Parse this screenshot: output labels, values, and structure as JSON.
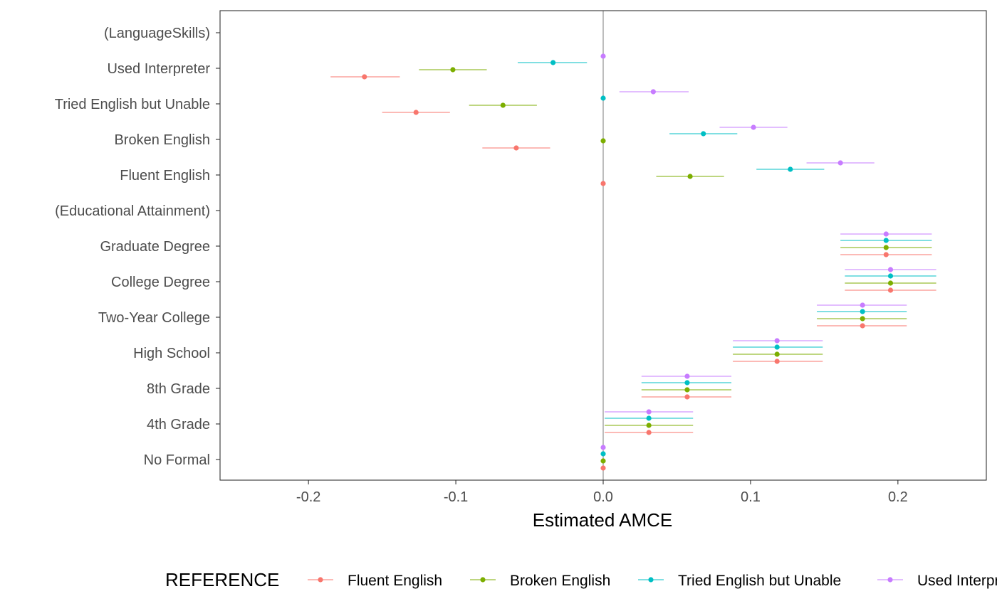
{
  "chart_data": {
    "type": "scatter",
    "xlabel": "Estimated AMCE",
    "xlim": [
      -0.26,
      0.26
    ],
    "xticks": [
      -0.2,
      -0.1,
      0.0,
      0.1,
      0.2
    ],
    "xtick_labels": [
      "-0.2",
      "-0.1",
      "0.0",
      "0.1",
      "0.2"
    ],
    "grid": false,
    "reference_line": 0.0,
    "legend_position": "bottom",
    "legend_title": "REFERENCE",
    "categories": [
      "(LanguageSkills)",
      "Used Interpreter",
      "Tried English but Unable",
      "Broken English",
      "Fluent English",
      "(Educational Attainment)",
      "Graduate Degree",
      "College Degree",
      "Two-Year College",
      "High School",
      "8th Grade",
      "4th Grade",
      "No Formal"
    ],
    "series": [
      {
        "name": "Fluent English",
        "color": "#F8766D",
        "points": [
          {
            "category": "Used Interpreter",
            "est": -0.162,
            "lo": -0.185,
            "hi": -0.138
          },
          {
            "category": "Tried English but Unable",
            "est": -0.127,
            "lo": -0.15,
            "hi": -0.104
          },
          {
            "category": "Broken English",
            "est": -0.059,
            "lo": -0.082,
            "hi": -0.036
          },
          {
            "category": "Fluent English",
            "est": 0.0,
            "lo": 0.0,
            "hi": 0.0
          },
          {
            "category": "Graduate Degree",
            "est": 0.192,
            "lo": 0.161,
            "hi": 0.223
          },
          {
            "category": "College Degree",
            "est": 0.195,
            "lo": 0.164,
            "hi": 0.226
          },
          {
            "category": "Two-Year College",
            "est": 0.176,
            "lo": 0.145,
            "hi": 0.206
          },
          {
            "category": "High School",
            "est": 0.118,
            "lo": 0.088,
            "hi": 0.149
          },
          {
            "category": "8th Grade",
            "est": 0.057,
            "lo": 0.026,
            "hi": 0.087
          },
          {
            "category": "4th Grade",
            "est": 0.031,
            "lo": 0.001,
            "hi": 0.061
          },
          {
            "category": "No Formal",
            "est": 0.0,
            "lo": 0.0,
            "hi": 0.0
          }
        ]
      },
      {
        "name": "Broken English",
        "color": "#7CAE00",
        "points": [
          {
            "category": "Used Interpreter",
            "est": -0.102,
            "lo": -0.125,
            "hi": -0.079
          },
          {
            "category": "Tried English but Unable",
            "est": -0.068,
            "lo": -0.091,
            "hi": -0.045
          },
          {
            "category": "Broken English",
            "est": 0.0,
            "lo": 0.0,
            "hi": 0.0
          },
          {
            "category": "Fluent English",
            "est": 0.059,
            "lo": 0.036,
            "hi": 0.082
          },
          {
            "category": "Graduate Degree",
            "est": 0.192,
            "lo": 0.161,
            "hi": 0.223
          },
          {
            "category": "College Degree",
            "est": 0.195,
            "lo": 0.164,
            "hi": 0.226
          },
          {
            "category": "Two-Year College",
            "est": 0.176,
            "lo": 0.145,
            "hi": 0.206
          },
          {
            "category": "High School",
            "est": 0.118,
            "lo": 0.088,
            "hi": 0.149
          },
          {
            "category": "8th Grade",
            "est": 0.057,
            "lo": 0.026,
            "hi": 0.087
          },
          {
            "category": "4th Grade",
            "est": 0.031,
            "lo": 0.001,
            "hi": 0.061
          },
          {
            "category": "No Formal",
            "est": 0.0,
            "lo": 0.0,
            "hi": 0.0
          }
        ]
      },
      {
        "name": "Tried English but Unable",
        "color": "#00BFC4",
        "points": [
          {
            "category": "Used Interpreter",
            "est": -0.034,
            "lo": -0.058,
            "hi": -0.011
          },
          {
            "category": "Tried English but Unable",
            "est": 0.0,
            "lo": 0.0,
            "hi": 0.0
          },
          {
            "category": "Broken English",
            "est": 0.068,
            "lo": 0.045,
            "hi": 0.091
          },
          {
            "category": "Fluent English",
            "est": 0.127,
            "lo": 0.104,
            "hi": 0.15
          },
          {
            "category": "Graduate Degree",
            "est": 0.192,
            "lo": 0.161,
            "hi": 0.223
          },
          {
            "category": "College Degree",
            "est": 0.195,
            "lo": 0.164,
            "hi": 0.226
          },
          {
            "category": "Two-Year College",
            "est": 0.176,
            "lo": 0.145,
            "hi": 0.206
          },
          {
            "category": "High School",
            "est": 0.118,
            "lo": 0.088,
            "hi": 0.149
          },
          {
            "category": "8th Grade",
            "est": 0.057,
            "lo": 0.026,
            "hi": 0.087
          },
          {
            "category": "4th Grade",
            "est": 0.031,
            "lo": 0.001,
            "hi": 0.061
          },
          {
            "category": "No Formal",
            "est": 0.0,
            "lo": 0.0,
            "hi": 0.0
          }
        ]
      },
      {
        "name": "Used Interpreter",
        "color": "#C77CFF",
        "points": [
          {
            "category": "Used Interpreter",
            "est": 0.0,
            "lo": 0.0,
            "hi": 0.0
          },
          {
            "category": "Tried English but Unable",
            "est": 0.034,
            "lo": 0.011,
            "hi": 0.058
          },
          {
            "category": "Broken English",
            "est": 0.102,
            "lo": 0.079,
            "hi": 0.125
          },
          {
            "category": "Fluent English",
            "est": 0.161,
            "lo": 0.138,
            "hi": 0.184
          },
          {
            "category": "Graduate Degree",
            "est": 0.192,
            "lo": 0.161,
            "hi": 0.223
          },
          {
            "category": "College Degree",
            "est": 0.195,
            "lo": 0.164,
            "hi": 0.226
          },
          {
            "category": "Two-Year College",
            "est": 0.176,
            "lo": 0.145,
            "hi": 0.206
          },
          {
            "category": "High School",
            "est": 0.118,
            "lo": 0.088,
            "hi": 0.149
          },
          {
            "category": "8th Grade",
            "est": 0.057,
            "lo": 0.026,
            "hi": 0.087
          },
          {
            "category": "4th Grade",
            "est": 0.031,
            "lo": 0.001,
            "hi": 0.061
          },
          {
            "category": "No Formal",
            "est": 0.0,
            "lo": 0.0,
            "hi": 0.0
          }
        ]
      }
    ]
  }
}
